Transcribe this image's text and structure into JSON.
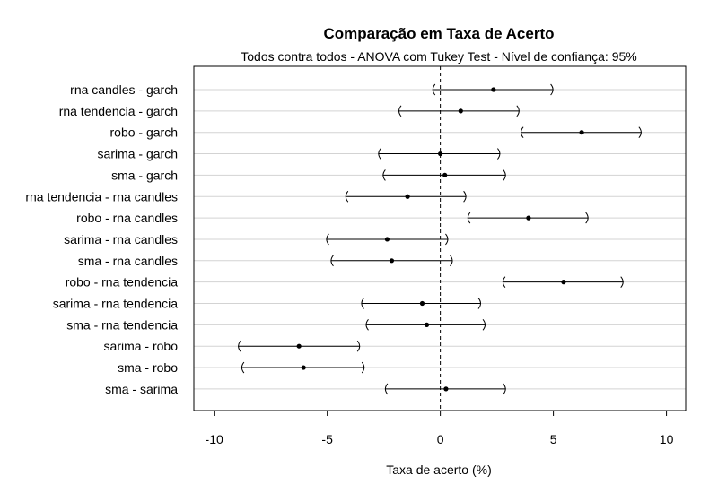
{
  "chart_data": {
    "type": "scatter",
    "subtype": "interval-dot-plot",
    "title": "Comparação em Taxa de Acerto",
    "subtitle": "Todos contra todos - ANOVA com Tukey Test - Nível de confiança: 95%",
    "xlabel": "Taxa de acerto (%)",
    "ylabel": "",
    "xlim": [
      -10.9,
      10.85
    ],
    "xticks": [
      -10,
      -5,
      0,
      5,
      10
    ],
    "xtick_labels": [
      "-10",
      "-5",
      "0",
      "5",
      "10"
    ],
    "reference_line": 0,
    "grid": "horizontal",
    "colors": {
      "mark": "#000000",
      "grid": "#d3d3d3",
      "axis": "#000000"
    },
    "categories": [
      "rna candles - garch",
      "rna tendencia - garch",
      "robo - garch",
      "sarima - garch",
      "sma - garch",
      "rna tendencia - rna candles",
      "robo - rna candles",
      "sarima - rna candles",
      "sma - rna candles",
      "robo - rna tendencia",
      "sarima - rna tendencia",
      "sma - rna tendencia",
      "sarima - robo",
      "sma - robo",
      "sma - sarima"
    ],
    "estimate": [
      2.35,
      0.9,
      6.25,
      0.0,
      0.2,
      -1.45,
      3.9,
      -2.35,
      -2.15,
      5.45,
      -0.8,
      -0.6,
      -6.25,
      -6.05,
      0.25
    ],
    "lower": [
      -0.35,
      -1.85,
      3.55,
      -2.75,
      -2.55,
      -4.2,
      1.2,
      -5.05,
      -4.85,
      2.75,
      -3.5,
      -3.3,
      -8.95,
      -8.8,
      -2.45
    ],
    "upper": [
      5.0,
      3.5,
      8.9,
      2.65,
      2.9,
      1.15,
      6.55,
      0.35,
      0.55,
      8.1,
      1.8,
      2.0,
      -3.55,
      -3.35,
      2.9
    ]
  }
}
